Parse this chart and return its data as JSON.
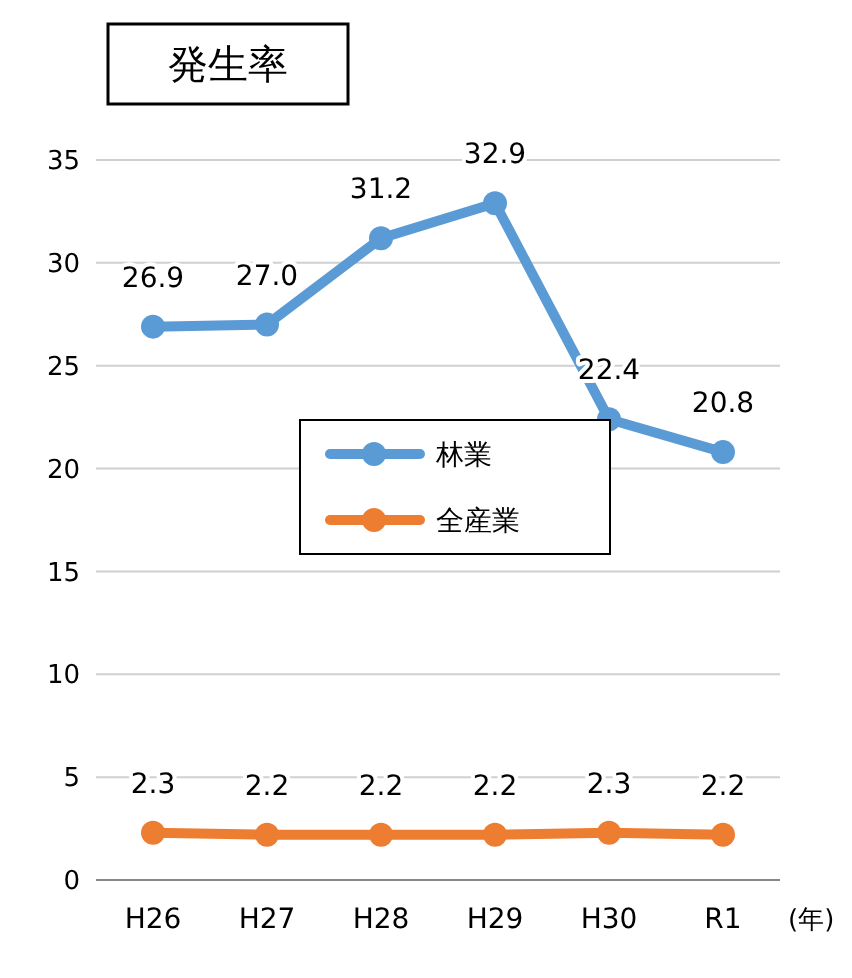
{
  "chart_data": {
    "type": "line",
    "title": "発生率",
    "xlabel": "(年)",
    "categories": [
      "H26",
      "H27",
      "H28",
      "H29",
      "H30",
      "R1"
    ],
    "series": [
      {
        "name": "林業",
        "color": "#5b9bd5",
        "values": [
          26.9,
          27.0,
          31.2,
          32.9,
          22.4,
          20.8
        ],
        "value_labels": [
          "26.9",
          "27.0",
          "31.2",
          "32.9",
          "22.4",
          "20.8"
        ]
      },
      {
        "name": "全産業",
        "color": "#ed7d31",
        "values": [
          2.3,
          2.2,
          2.2,
          2.2,
          2.3,
          2.2
        ],
        "value_labels": [
          "2.3",
          "2.2",
          "2.2",
          "2.2",
          "2.3",
          "2.2"
        ]
      }
    ],
    "ylim": [
      0,
      35
    ],
    "yticks": [
      0,
      5,
      10,
      15,
      20,
      25,
      30,
      35
    ],
    "grid": "y",
    "legend": "center",
    "marker": "circle",
    "line_style": "solid"
  }
}
